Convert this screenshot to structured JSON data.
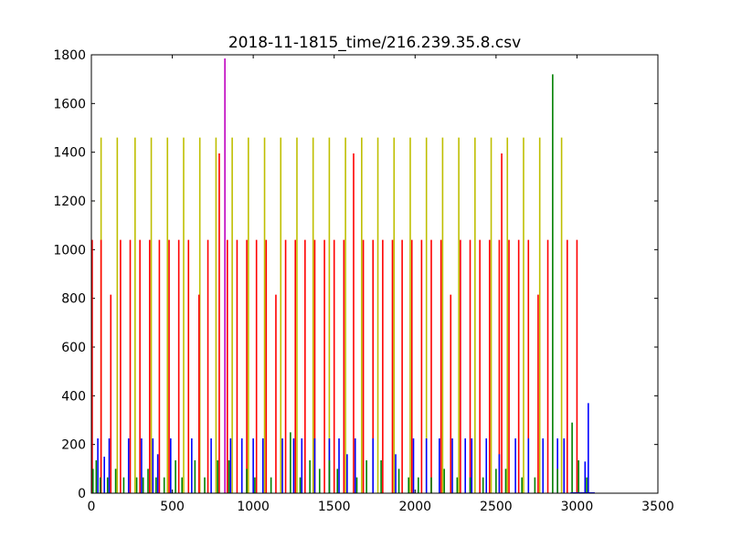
{
  "chart_data": {
    "type": "bar",
    "title": "2018-11-1815_time/216.239.35.8.csv",
    "xlabel": "",
    "ylabel": "",
    "xlim": [
      0,
      3500
    ],
    "ylim": [
      0,
      1800
    ],
    "xticks": [
      "0",
      "500",
      "1000",
      "1500",
      "2000",
      "2500",
      "3000",
      "3500"
    ],
    "yticks": [
      "0",
      "200",
      "400",
      "600",
      "800",
      "1000",
      "1200",
      "1400",
      "1600",
      "1800"
    ],
    "grid": false,
    "legend": "none",
    "series": [
      {
        "color": "#bfbf00",
        "x": [
          60,
          160,
          270,
          370,
          470,
          570,
          670,
          770,
          870,
          970,
          1070,
          1170,
          1270,
          1370,
          1470,
          1570,
          1670,
          1770,
          1870,
          1970,
          2070,
          2170,
          2270,
          2370,
          2470,
          2570,
          2670,
          2770,
          2905
        ],
        "values": [
          1460,
          1460,
          1460,
          1460,
          1460,
          1460,
          1460,
          1460,
          1460,
          1460,
          1460,
          1460,
          1460,
          1460,
          1460,
          1460,
          1460,
          1460,
          1460,
          1460,
          1460,
          1460,
          1460,
          1460,
          1460,
          1460,
          1460,
          1460,
          1460
        ]
      },
      {
        "color": "#ff0000",
        "x": [
          5,
          60,
          120,
          180,
          240,
          300,
          360,
          420,
          480,
          540,
          600,
          665,
          720,
          790,
          840,
          900,
          960,
          1020,
          1080,
          1140,
          1200,
          1260,
          1320,
          1380,
          1440,
          1500,
          1560,
          1620,
          1680,
          1740,
          1800,
          1860,
          1920,
          1980,
          2040,
          2100,
          2160,
          2220,
          2280,
          2340,
          2400,
          2460,
          2520,
          2535,
          2580,
          2640,
          2700,
          2760,
          2820,
          2940,
          3000
        ],
        "values": [
          1040,
          1040,
          815,
          1040,
          1040,
          1040,
          1040,
          1040,
          1040,
          1040,
          1040,
          815,
          1040,
          1395,
          1040,
          1040,
          1040,
          1040,
          1040,
          815,
          1040,
          1040,
          1040,
          1040,
          1040,
          1040,
          1040,
          1395,
          1040,
          1040,
          1040,
          1040,
          1040,
          1040,
          1040,
          1040,
          1040,
          815,
          1040,
          1040,
          1040,
          1040,
          1040,
          1395,
          1040,
          1040,
          1040,
          815,
          1040,
          1040,
          1040
        ]
      },
      {
        "color": "#bf00bf",
        "x": [
          825
        ],
        "values": [
          1785
        ]
      },
      {
        "color": "#0000ff",
        "x": [
          40,
          80,
          110,
          230,
          310,
          380,
          410,
          490,
          620,
          740,
          860,
          930,
          1000,
          1060,
          1180,
          1250,
          1300,
          1380,
          1470,
          1530,
          1580,
          1630,
          1740,
          1880,
          1990,
          2070,
          2150,
          2230,
          2310,
          2350,
          2440,
          2520,
          2620,
          2700,
          2790,
          2880,
          2920,
          3050,
          3070
        ],
        "values": [
          225,
          150,
          225,
          225,
          225,
          225,
          160,
          225,
          225,
          225,
          225,
          225,
          225,
          225,
          225,
          225,
          225,
          225,
          225,
          225,
          160,
          225,
          225,
          160,
          225,
          225,
          225,
          225,
          225,
          225,
          225,
          160,
          225,
          225,
          225,
          225,
          225,
          130,
          370
        ]
      },
      {
        "color": "#008000",
        "x": [
          10,
          30,
          55,
          100,
          150,
          200,
          280,
          320,
          350,
          400,
          450,
          520,
          560,
          640,
          700,
          780,
          850,
          960,
          1010,
          1110,
          1230,
          1290,
          1350,
          1410,
          1470,
          1520,
          1640,
          1700,
          1790,
          1900,
          1960,
          2020,
          2100,
          2180,
          2260,
          2340,
          2420,
          2500,
          2560,
          2660,
          2740,
          2850,
          2880,
          2970,
          3010,
          3060
        ],
        "values": [
          100,
          135,
          65,
          65,
          100,
          65,
          65,
          65,
          100,
          65,
          65,
          135,
          65,
          135,
          65,
          135,
          135,
          100,
          65,
          65,
          250,
          65,
          135,
          100,
          135,
          100,
          65,
          135,
          135,
          100,
          65,
          65,
          65,
          100,
          65,
          65,
          65,
          100,
          100,
          65,
          65,
          1720,
          100,
          290,
          135,
          65
        ]
      }
    ]
  }
}
